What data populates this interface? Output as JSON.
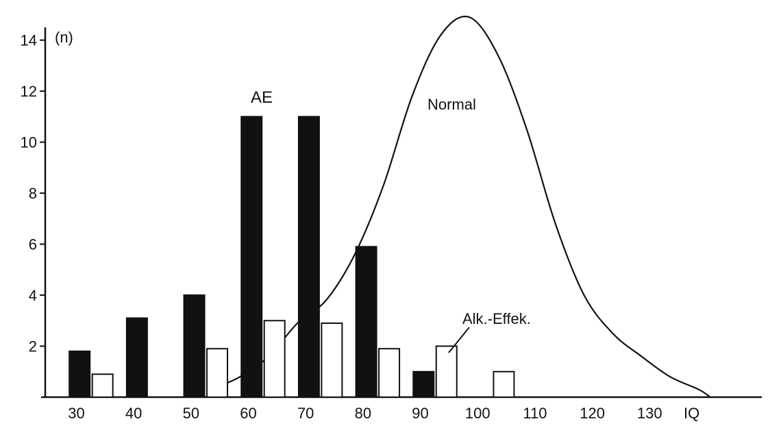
{
  "chart_data": {
    "type": "bar",
    "ylabel": "(n)",
    "xlabel": "IQ",
    "ylim": [
      0,
      14.5
    ],
    "y_ticks": [
      2,
      4,
      6,
      8,
      10,
      12,
      14
    ],
    "x_ticks": [
      30,
      40,
      50,
      60,
      70,
      80,
      90,
      100,
      110,
      120,
      130
    ],
    "x_tick_labels": [
      "30",
      "40",
      "50",
      "60",
      "70",
      "80",
      "90",
      "100",
      "110",
      "120",
      "130"
    ],
    "series": [
      {
        "name": "AE",
        "fill": "black",
        "data": [
          {
            "x": 32,
            "y": 1.8
          },
          {
            "x": 42,
            "y": 3.1
          },
          {
            "x": 52,
            "y": 4.0
          },
          {
            "x": 62,
            "y": 11.0
          },
          {
            "x": 72,
            "y": 11.0
          },
          {
            "x": 82,
            "y": 5.9
          },
          {
            "x": 92,
            "y": 1.0
          }
        ]
      },
      {
        "name": "Alk.-Effek.",
        "fill": "white",
        "data": [
          {
            "x": 36,
            "y": 0.9
          },
          {
            "x": 56,
            "y": 1.9
          },
          {
            "x": 66,
            "y": 3.0
          },
          {
            "x": 76,
            "y": 2.9
          },
          {
            "x": 86,
            "y": 1.9
          },
          {
            "x": 96,
            "y": 2.0
          },
          {
            "x": 106,
            "y": 1.0
          }
        ]
      },
      {
        "name": "Normal",
        "type": "line",
        "data": [
          {
            "x": 56,
            "y": 0.4
          },
          {
            "x": 60,
            "y": 0.8
          },
          {
            "x": 65,
            "y": 1.6
          },
          {
            "x": 70,
            "y": 2.9
          },
          {
            "x": 75,
            "y": 3.8
          },
          {
            "x": 80,
            "y": 5.6
          },
          {
            "x": 85,
            "y": 8.3
          },
          {
            "x": 90,
            "y": 11.8
          },
          {
            "x": 95,
            "y": 14.2
          },
          {
            "x": 100,
            "y": 14.9
          },
          {
            "x": 105,
            "y": 13.4
          },
          {
            "x": 110,
            "y": 10.5
          },
          {
            "x": 115,
            "y": 6.8
          },
          {
            "x": 120,
            "y": 4.0
          },
          {
            "x": 125,
            "y": 2.5
          },
          {
            "x": 130,
            "y": 1.6
          },
          {
            "x": 135,
            "y": 0.8
          },
          {
            "x": 140,
            "y": 0.3
          },
          {
            "x": 142,
            "y": 0.0
          }
        ]
      }
    ],
    "annotations": {
      "ae": "AE",
      "normal": "Normal",
      "alk": "Alk.-Effek."
    },
    "grid": false
  }
}
